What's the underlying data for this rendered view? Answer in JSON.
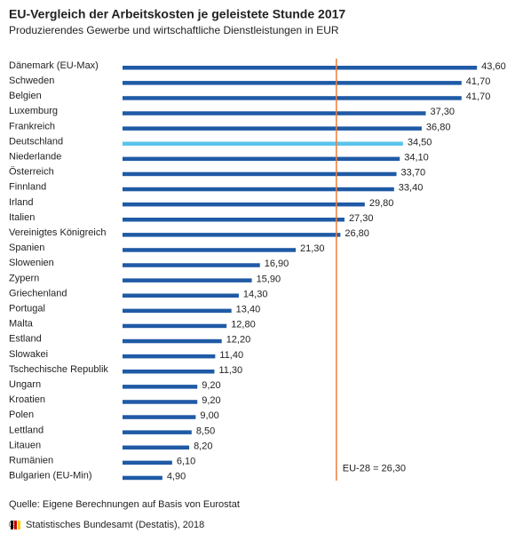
{
  "chart_data": {
    "type": "hbar",
    "title": "EU-Vergleich der Arbeitskosten je geleistete Stunde 2017",
    "subtitle": "Produzierendes Gewerbe und wirtschaftliche Dienstleistungen in EUR",
    "categories": [
      "Dänemark (EU-Max)",
      "Schweden",
      "Belgien",
      "Luxemburg",
      "Frankreich",
      "Deutschland",
      "Niederlande",
      "Österreich",
      "Finnland",
      "Irland",
      "Italien",
      "Vereinigtes Königreich",
      "Spanien",
      "Slowenien",
      "Zypern",
      "Griechenland",
      "Portugal",
      "Malta",
      "Estland",
      "Slowakei",
      "Tschechische Republik",
      "Ungarn",
      "Kroatien",
      "Polen",
      "Lettland",
      "Litauen",
      "Rumänien",
      "Bulgarien (EU-Min)"
    ],
    "values": [
      43.6,
      41.7,
      41.7,
      37.3,
      36.8,
      34.5,
      34.1,
      33.7,
      33.4,
      29.8,
      27.3,
      26.8,
      21.3,
      16.9,
      15.9,
      14.3,
      13.4,
      12.8,
      12.2,
      11.4,
      11.3,
      9.2,
      9.2,
      9.0,
      8.5,
      8.2,
      6.1,
      4.9
    ],
    "value_labels": [
      "43,60",
      "41,70",
      "41,70",
      "37,30",
      "36,80",
      "34,50",
      "34,10",
      "33,70",
      "33,40",
      "29,80",
      "27,30",
      "26,80",
      "21,30",
      "16,90",
      "15,90",
      "14,30",
      "13,40",
      "12,80",
      "12,20",
      "11,40",
      "11,30",
      "9,20",
      "9,20",
      "9,00",
      "8,50",
      "8,20",
      "6,10",
      "4,90"
    ],
    "colors": [
      "#1f5aa6",
      "#1f5aa6",
      "#1f5aa6",
      "#1f5aa6",
      "#1f5aa6",
      "#5bc3ec",
      "#1f5aa6",
      "#1f5aa6",
      "#1f5aa6",
      "#1f5aa6",
      "#1f5aa6",
      "#1f5aa6",
      "#1f5aa6",
      "#1f5aa6",
      "#1f5aa6",
      "#1f5aa6",
      "#1f5aa6",
      "#1f5aa6",
      "#1f5aa6",
      "#1f5aa6",
      "#1f5aa6",
      "#1f5aa6",
      "#1f5aa6",
      "#1f5aa6",
      "#1f5aa6",
      "#1f5aa6",
      "#1f5aa6",
      "#1f5aa6"
    ],
    "xlim": [
      0,
      45
    ],
    "reference": {
      "value": 26.3,
      "label": "EU-28 = 26,30",
      "color": "#f07d3a"
    },
    "source": "Quelle: Eigene Berechnungen auf Basis von Eurostat",
    "copyright": "© Statistisches Bundesamt (Destatis), 2018"
  }
}
